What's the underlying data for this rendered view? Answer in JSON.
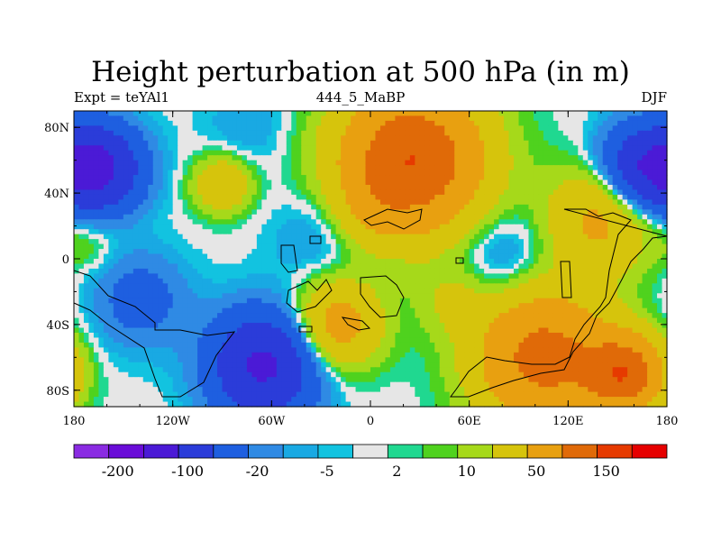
{
  "chart_data": {
    "type": "heatmap",
    "title": "Height perturbation at 500 hPa (in m)",
    "subtitle_left": "Expt = teYAl1",
    "subtitle_center": "444_5_MaBP",
    "subtitle_right": "DJF",
    "xlabel": "",
    "ylabel": "",
    "xlim": [
      -180,
      180
    ],
    "ylim": [
      -90,
      90
    ],
    "x_ticks": [
      {
        "value": -180,
        "label": "180"
      },
      {
        "value": -120,
        "label": "120W"
      },
      {
        "value": -60,
        "label": "60W"
      },
      {
        "value": 0,
        "label": "0"
      },
      {
        "value": 60,
        "label": "60E"
      },
      {
        "value": 120,
        "label": "120E"
      },
      {
        "value": 180,
        "label": "180"
      }
    ],
    "y_ticks": [
      {
        "value": 80,
        "label": "80N"
      },
      {
        "value": 40,
        "label": "40N"
      },
      {
        "value": 0,
        "label": "0"
      },
      {
        "value": -40,
        "label": "40S"
      },
      {
        "value": -80,
        "label": "80S"
      }
    ],
    "levels": [
      -200,
      -150,
      -100,
      -50,
      -20,
      -10,
      -5,
      -2,
      2,
      5,
      10,
      20,
      50,
      100,
      150,
      200
    ],
    "colorbar_labels": [
      {
        "after_bin": 1,
        "label": "-200"
      },
      {
        "after_bin": 3,
        "label": "-100"
      },
      {
        "after_bin": 5,
        "label": "-20"
      },
      {
        "after_bin": 7,
        "label": "-5"
      },
      {
        "after_bin": 9,
        "label": "2"
      },
      {
        "after_bin": 11,
        "label": "10"
      },
      {
        "after_bin": 13,
        "label": "50"
      },
      {
        "after_bin": 15,
        "label": "150"
      }
    ],
    "colors": [
      "#8a2be2",
      "#6a0dd8",
      "#4b1ad6",
      "#2b3cd9",
      "#1e5fe0",
      "#2f8ae4",
      "#19a9e3",
      "#12c3e0",
      "#e6e6e6",
      "#20d890",
      "#4fd21e",
      "#a6d91a",
      "#d6c40c",
      "#e8a010",
      "#e06a08",
      "#e63a00",
      "#e60000"
    ],
    "field_centers": [
      {
        "lon": -165,
        "lat": 55,
        "value": -110,
        "spread": 18
      },
      {
        "lon": 165,
        "lat": 55,
        "value": -90,
        "spread": 18
      },
      {
        "lon": -75,
        "lat": 80,
        "value": -10,
        "spread": 18
      },
      {
        "lon": -90,
        "lat": 45,
        "value": 45,
        "spread": 12
      },
      {
        "lon": -65,
        "lat": -65,
        "value": -110,
        "spread": 22
      },
      {
        "lon": -140,
        "lat": -25,
        "value": -30,
        "spread": 20
      },
      {
        "lon": 25,
        "lat": 60,
        "value": 150,
        "spread": 30
      },
      {
        "lon": 0,
        "lat": 30,
        "value": 20,
        "spread": 15
      },
      {
        "lon": 105,
        "lat": -60,
        "value": 120,
        "spread": 28
      },
      {
        "lon": 155,
        "lat": -70,
        "value": 130,
        "spread": 16
      },
      {
        "lon": 140,
        "lat": 25,
        "value": 60,
        "spread": 22
      },
      {
        "lon": -20,
        "lat": -40,
        "value": 70,
        "spread": 18
      },
      {
        "lon": 50,
        "lat": -25,
        "value": 20,
        "spread": 15
      },
      {
        "lon": 80,
        "lat": 0,
        "value": -20,
        "spread": 20
      },
      {
        "lon": -30,
        "lat": 15,
        "value": -15,
        "spread": 20
      },
      {
        "lon": -170,
        "lat": 10,
        "value": 10,
        "spread": 12
      }
    ]
  }
}
